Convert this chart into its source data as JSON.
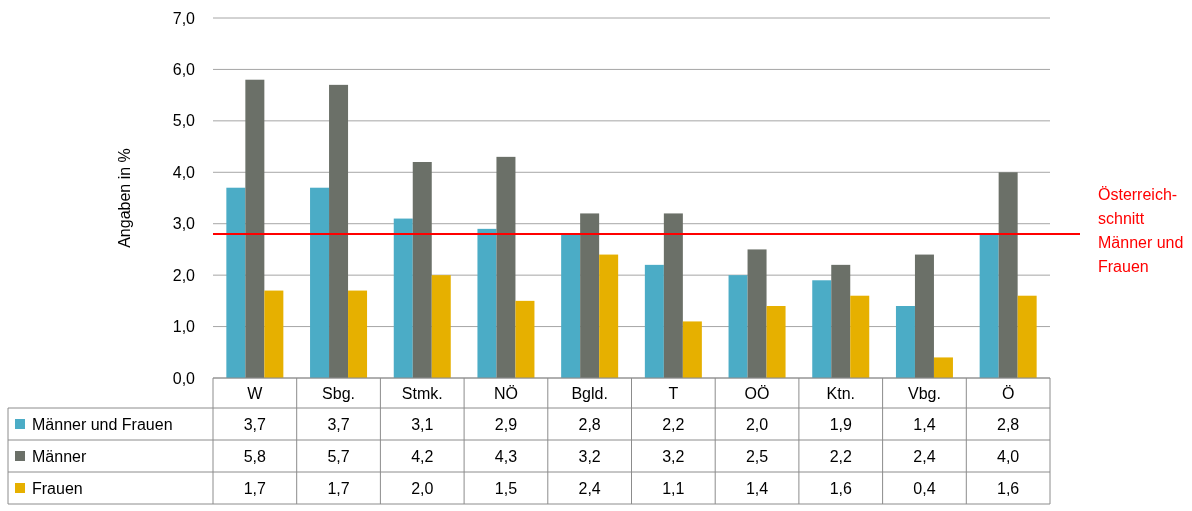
{
  "chart_data": {
    "type": "bar",
    "ylabel": "Angaben in %",
    "categories": [
      "W",
      "Sbg.",
      "Stmk.",
      "NÖ",
      "Bgld.",
      "T",
      "OÖ",
      "Ktn.",
      "Vbg.",
      "Ö"
    ],
    "series": [
      {
        "name": "Männer und Frauen",
        "color": "#4bacc6",
        "values": [
          3.7,
          3.7,
          3.1,
          2.9,
          2.8,
          2.2,
          2.0,
          1.9,
          1.4,
          2.8
        ],
        "value_labels": [
          "3,7",
          "3,7",
          "3,1",
          "2,9",
          "2,8",
          "2,2",
          "2,0",
          "1,9",
          "1,4",
          "2,8"
        ]
      },
      {
        "name": "Männer",
        "color": "#6b7068",
        "values": [
          5.8,
          5.7,
          4.2,
          4.3,
          3.2,
          3.2,
          2.5,
          2.2,
          2.4,
          4.0
        ],
        "value_labels": [
          "5,8",
          "5,7",
          "4,2",
          "4,3",
          "3,2",
          "3,2",
          "2,5",
          "2,2",
          "2,4",
          "4,0"
        ]
      },
      {
        "name": "Frauen",
        "color": "#e6b000",
        "values": [
          1.7,
          1.7,
          2.0,
          1.5,
          2.4,
          1.1,
          1.4,
          1.6,
          0.4,
          1.6
        ],
        "value_labels": [
          "1,7",
          "1,7",
          "2,0",
          "1,5",
          "2,4",
          "1,1",
          "1,4",
          "1,6",
          "0,4",
          "1,6"
        ]
      }
    ],
    "ylim": [
      0,
      7
    ],
    "yticks": [
      {
        "value": 0,
        "label": "0,0"
      },
      {
        "value": 1,
        "label": "1,0"
      },
      {
        "value": 2,
        "label": "2,0"
      },
      {
        "value": 3,
        "label": "3,0"
      },
      {
        "value": 4,
        "label": "4,0"
      },
      {
        "value": 5,
        "label": "5,0"
      },
      {
        "value": 6,
        "label": "6,0"
      },
      {
        "value": 7,
        "label": "7,0"
      }
    ],
    "grid": "y",
    "legend": "bottom",
    "ref_lines": [
      {
        "axis": "y",
        "value": 2.8,
        "label": "Österreich-\nschnitt\nMänner und\nFrauen",
        "color": "#ff0000"
      }
    ]
  }
}
